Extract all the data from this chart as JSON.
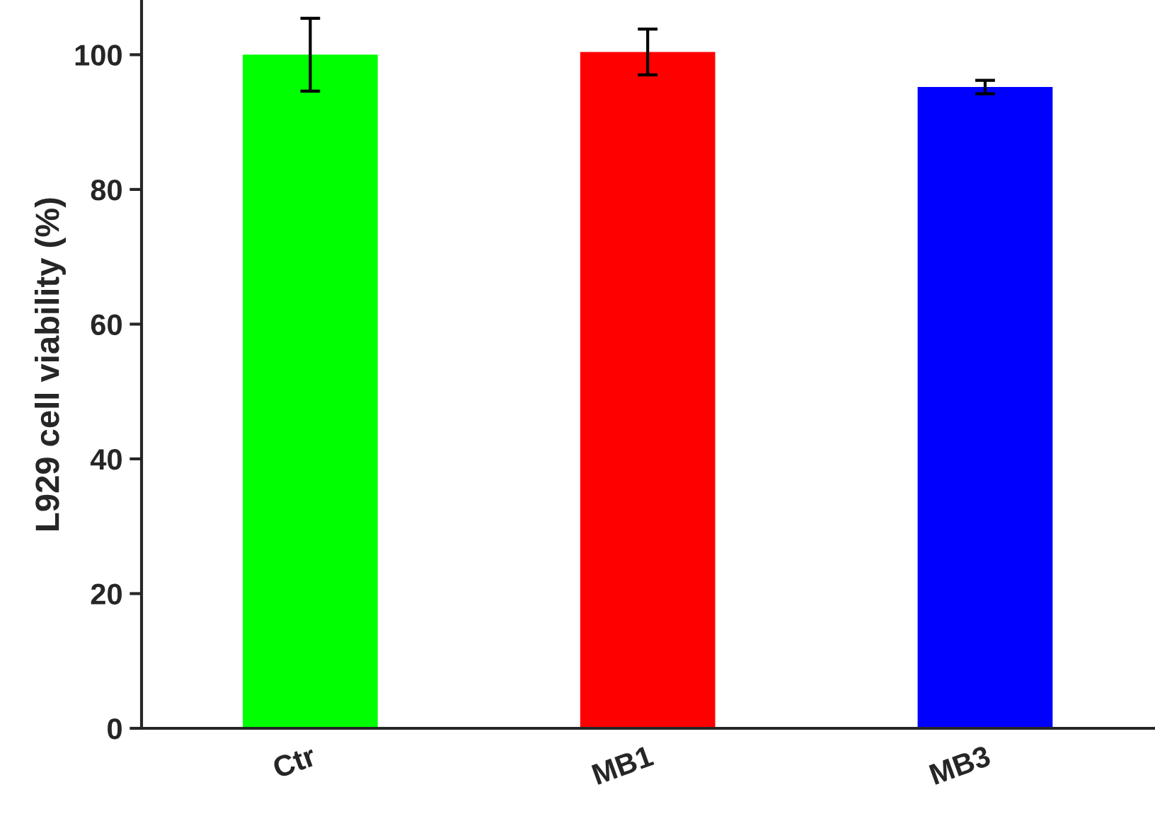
{
  "chart_data": {
    "type": "bar",
    "ylabel": "L929 cell viability (%)",
    "categories": [
      "Ctr",
      "MB1",
      "MB3"
    ],
    "values": [
      100.0,
      100.4,
      95.2
    ],
    "colors": [
      "#00ff00",
      "#ff0000",
      "#0000ff"
    ],
    "errors": [
      5.4,
      3.4,
      1.0
    ],
    "ylim": [
      0,
      108
    ],
    "yticks": [
      0,
      20,
      40,
      60,
      80,
      100
    ],
    "grid": false
  }
}
